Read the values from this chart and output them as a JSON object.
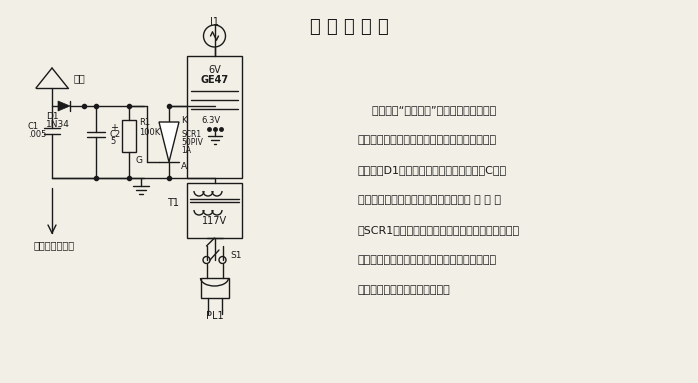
{
  "title": "发 讯 指 示 器",
  "bg_color": "#f2efe6",
  "text_color": "#1a1a1a",
  "desc_line1": "    每当按下“按下发话”按鈕时，指示灯就发",
  "desc_line2": "亮。天线对发讯机的射频输出取样。取消信号经",
  "desc_line3": "镀二极管D1整流（检波）后，用来对电容C２充",
  "desc_line4": "电。直流输出用来触发一个小型可控硬 整 流 器",
  "desc_line5": "（SCR1）。可控硬整流器使电流能流过小指示灯。",
  "desc_line6": "对于小功率发讯机（例如民用波段电台）来说，",
  "desc_line7": "天线必须与发讯机天线紧耦合。"
}
